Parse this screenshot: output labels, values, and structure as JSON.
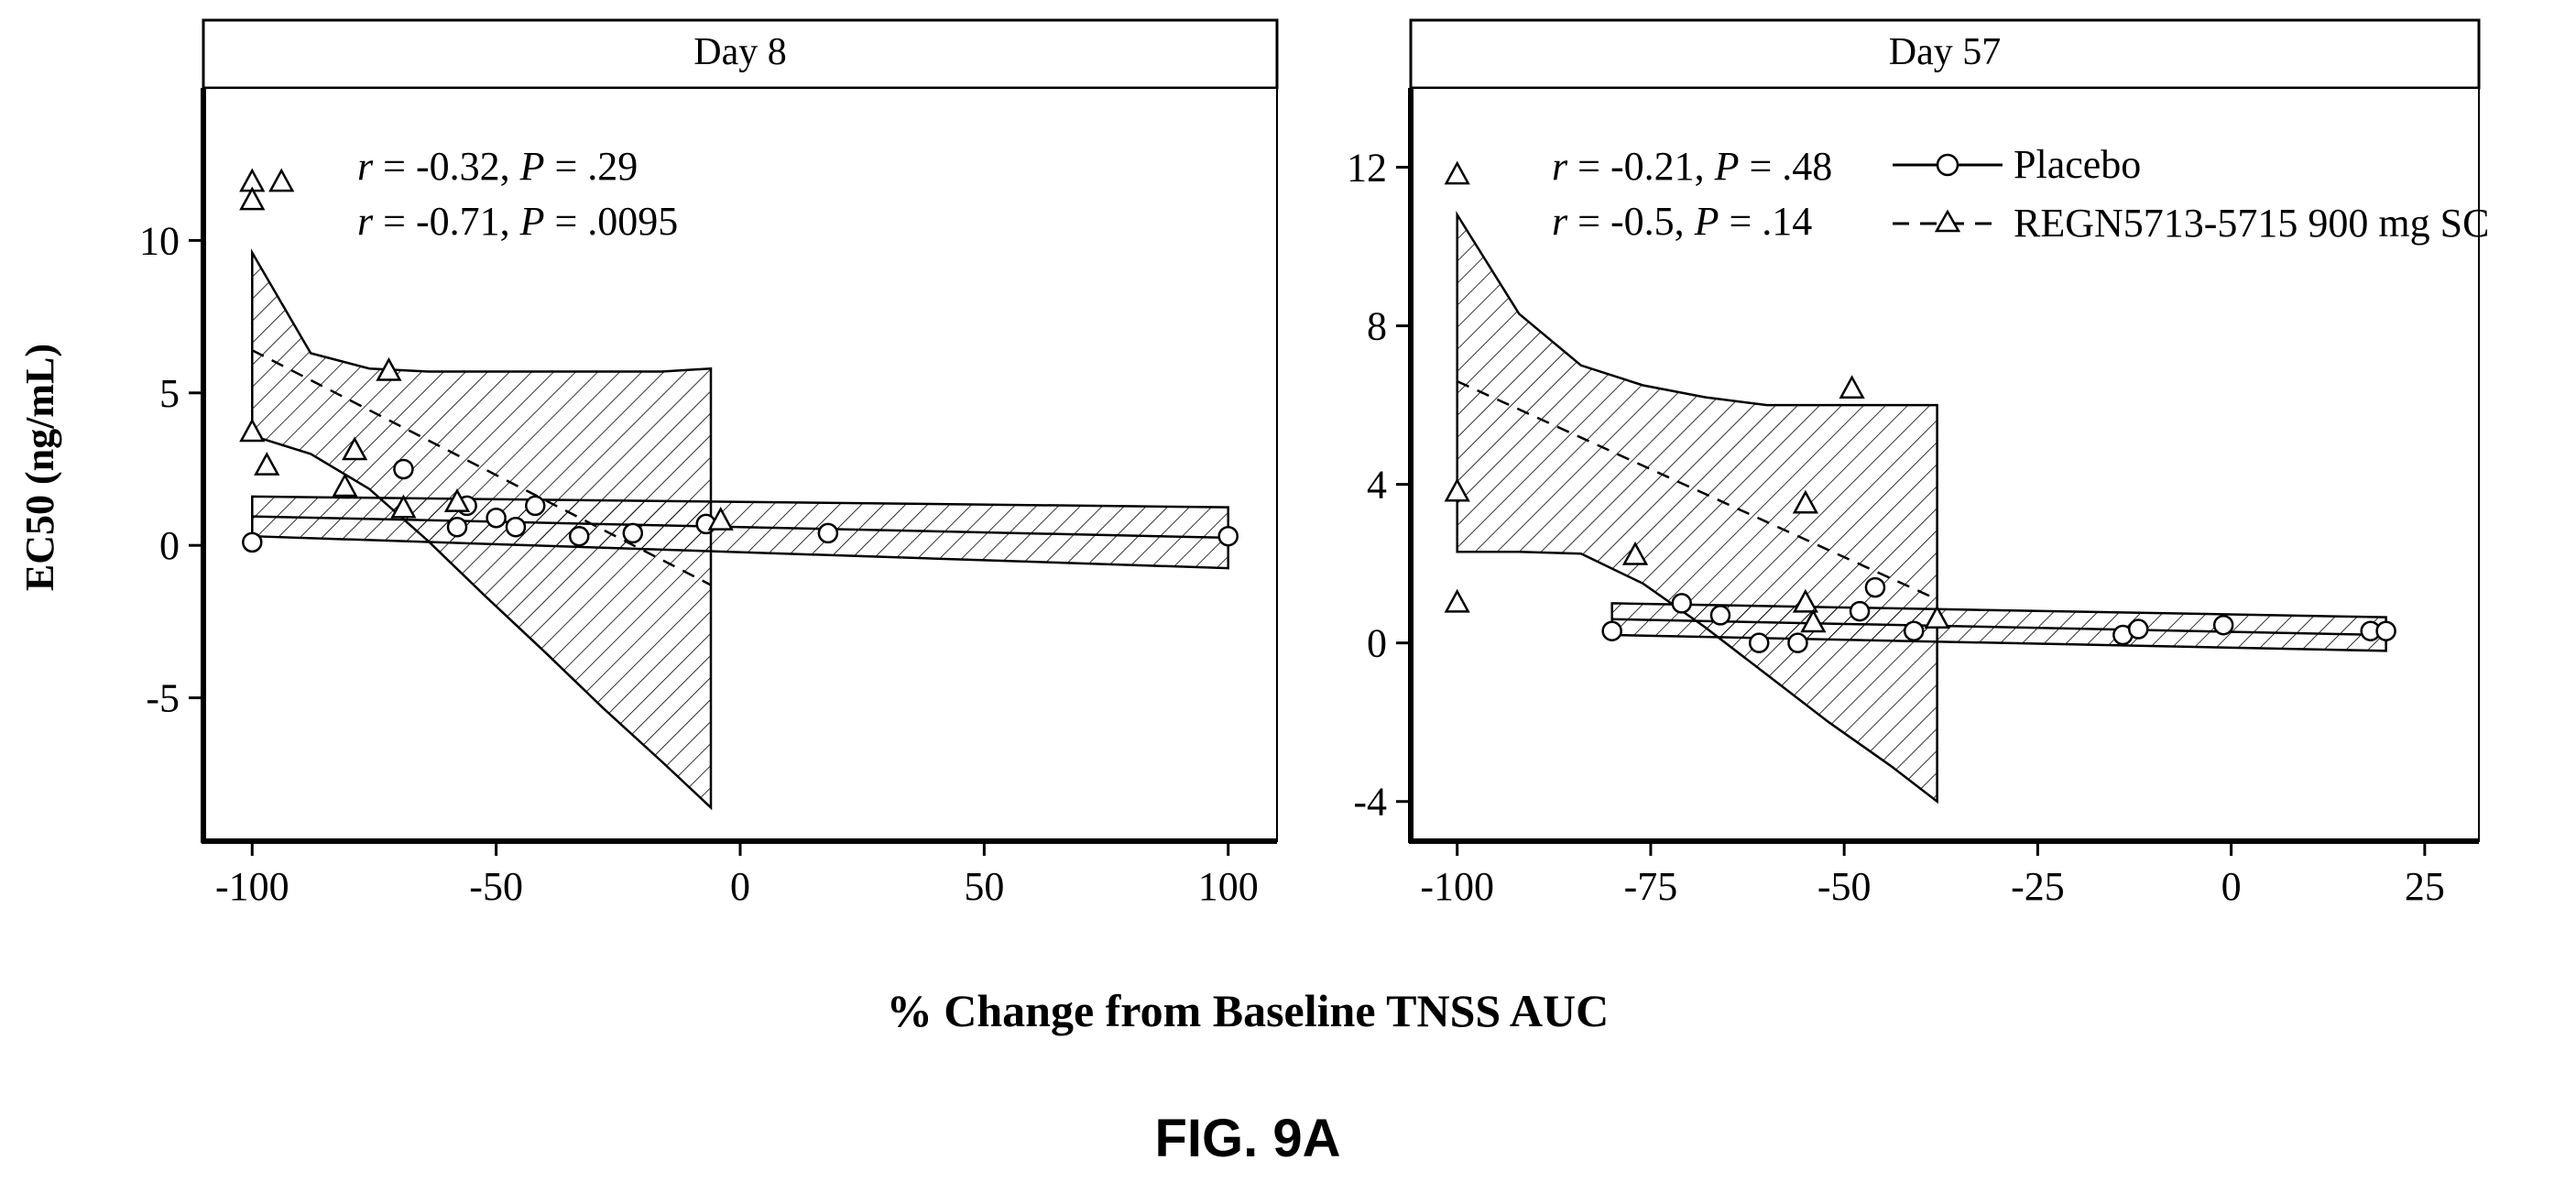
{
  "figure_label": "FIG. 9A",
  "x_axis_label": "% Change from Baseline TNSS AUC",
  "y_axis_label": "EC50 (ng/mL)",
  "legend": {
    "placement": "top-right of Day 57 panel",
    "entries": [
      {
        "label": "Placebo",
        "marker": "circle",
        "line": "solid"
      },
      {
        "label": "REGN5713-5715 900 mg SC",
        "marker": "triangle",
        "line": "dashed"
      }
    ]
  },
  "chart_data": [
    {
      "type": "scatter",
      "title": "Day 8",
      "xlabel": "% Change from Baseline TNSS AUC",
      "ylabel": "EC50 (ng/mL)",
      "xlim": [
        -110,
        110
      ],
      "ylim": [
        -9.7,
        15
      ],
      "x_ticks": [
        -100,
        -50,
        0,
        50,
        100
      ],
      "x_tick_labels": [
        "-100",
        "-50",
        "0",
        "50",
        "100"
      ],
      "y_ticks": [
        -5,
        0,
        5,
        10
      ],
      "y_tick_labels": [
        "-5",
        "0",
        "5",
        "10"
      ],
      "grid": false,
      "annotations": [
        {
          "r_label": "r",
          "r_value": " = -0.32, ",
          "p_label": "P",
          "p_value": " = .29",
          "series": "Placebo"
        },
        {
          "r_label": "r",
          "r_value": " = -0.71, ",
          "p_label": "P",
          "p_value": " = .0095",
          "series": "REGN5713-5715 900 mg SC"
        }
      ],
      "series": [
        {
          "name": "Placebo",
          "marker": "circle",
          "points": [
            [
              -100,
              0.1
            ],
            [
              -69,
              2.5
            ],
            [
              -58,
              0.6
            ],
            [
              -56,
              1.3
            ],
            [
              -50,
              0.9
            ],
            [
              -46,
              0.6
            ],
            [
              -42,
              1.3
            ],
            [
              -33,
              0.3
            ],
            [
              -22,
              0.4
            ],
            [
              -7,
              0.7
            ],
            [
              18,
              0.4
            ],
            [
              100,
              0.3
            ]
          ],
          "fit": {
            "x": [
              -100,
              100
            ],
            "y": [
              0.95,
              0.25
            ]
          },
          "ci": {
            "x": [
              -100,
              100
            ],
            "upper": [
              1.6,
              1.25
            ],
            "lower": [
              0.3,
              -0.75
            ]
          }
        },
        {
          "name": "REGN5713-5715 900 mg SC",
          "marker": "triangle",
          "points": [
            [
              -100,
              11.9
            ],
            [
              -100,
              11.3
            ],
            [
              -94,
              11.9
            ],
            [
              -100,
              3.7
            ],
            [
              -97,
              2.6
            ],
            [
              -81,
              1.9
            ],
            [
              -79,
              3.1
            ],
            [
              -72,
              5.7
            ],
            [
              -69,
              1.2
            ],
            [
              -58,
              1.4
            ],
            [
              -4,
              0.8
            ]
          ],
          "fit": {
            "x": [
              -100,
              -6
            ],
            "y": [
              6.4,
              -1.3
            ]
          },
          "ci": {
            "x": [
              -100,
              -88,
              -76,
              -64,
              -52,
              -40,
              -28,
              -16,
              -6
            ],
            "upper": [
              9.6,
              6.3,
              5.8,
              5.7,
              5.7,
              5.7,
              5.7,
              5.7,
              5.8
            ],
            "lower": [
              3.6,
              3.0,
              1.85,
              0.15,
              -1.7,
              -3.5,
              -5.35,
              -7.1,
              -8.6
            ]
          }
        }
      ]
    },
    {
      "type": "scatter",
      "title": "Day 57",
      "xlabel": "% Change from Baseline TNSS AUC",
      "ylabel": "EC50 (ng/mL)",
      "xlim": [
        -106,
        32
      ],
      "ylim": [
        -5,
        14
      ],
      "x_ticks": [
        -100,
        -75,
        -50,
        -25,
        0,
        25
      ],
      "x_tick_labels": [
        "-100",
        "-75",
        "-50",
        "-25",
        "0",
        "25"
      ],
      "y_ticks": [
        -4,
        0,
        4,
        8,
        12
      ],
      "y_tick_labels": [
        "-4",
        "0",
        "4",
        "8",
        "12"
      ],
      "grid": false,
      "annotations": [
        {
          "r_label": "r",
          "r_value": " = -0.21, ",
          "p_label": "P",
          "p_value": " = .48",
          "series": "Placebo"
        },
        {
          "r_label": "r",
          "r_value": " = -0.5, ",
          "p_label": "P",
          "p_value": " = .14",
          "series": "REGN5713-5715 900 mg SC"
        }
      ],
      "series": [
        {
          "name": "Placebo",
          "marker": "circle",
          "points": [
            [
              -80,
              0.3
            ],
            [
              -71,
              1.0
            ],
            [
              -66,
              0.7
            ],
            [
              -61,
              0.0
            ],
            [
              -56,
              0.0
            ],
            [
              -48,
              0.8
            ],
            [
              -46,
              1.4
            ],
            [
              -41,
              0.3
            ],
            [
              -14,
              0.2
            ],
            [
              -12,
              0.35
            ],
            [
              -1,
              0.45
            ],
            [
              18,
              0.3
            ],
            [
              20,
              0.3
            ]
          ],
          "fit": {
            "x": [
              -80,
              20
            ],
            "y": [
              0.6,
              0.2
            ]
          },
          "ci": {
            "x": [
              -80,
              20
            ],
            "upper": [
              1.0,
              0.65
            ],
            "lower": [
              0.2,
              -0.2
            ]
          }
        },
        {
          "name": "REGN5713-5715 900 mg SC",
          "marker": "triangle",
          "points": [
            [
              -100,
              11.8
            ],
            [
              -100,
              3.8
            ],
            [
              -100,
              1.0
            ],
            [
              -77,
              2.2
            ],
            [
              -55,
              3.5
            ],
            [
              -55,
              1.0
            ],
            [
              -54,
              0.5
            ],
            [
              -49,
              6.4
            ],
            [
              -38,
              0.6
            ]
          ],
          "fit": {
            "x": [
              -100,
              -38
            ],
            "y": [
              6.6,
              1.1
            ]
          },
          "ci": {
            "x": [
              -100,
              -92,
              -84,
              -76,
              -68,
              -60,
              -52,
              -44,
              -38
            ],
            "upper": [
              10.8,
              8.3,
              7.0,
              6.5,
              6.2,
              6.0,
              6.0,
              6.0,
              6.0
            ],
            "lower": [
              2.3,
              2.3,
              2.25,
              1.5,
              0.4,
              -0.8,
              -2.0,
              -3.1,
              -4.0
            ]
          }
        }
      ]
    }
  ]
}
